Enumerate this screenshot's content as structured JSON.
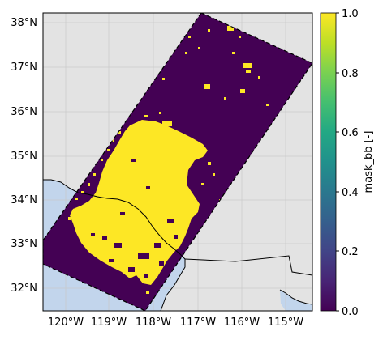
{
  "map": {
    "lat_ticks": [
      "38°N",
      "37°N",
      "36°N",
      "35°N",
      "34°N",
      "33°N",
      "32°N"
    ],
    "lon_ticks": [
      "120°W",
      "119°W",
      "118°W",
      "117°W",
      "116°W",
      "115°W"
    ],
    "colors": {
      "land": "#e3e3e3",
      "ocean": "#c2d5ec",
      "mask_zero": "#440154",
      "mask_one": "#fde725",
      "gridline": "#c8c8c8",
      "coastline": "#000000"
    }
  },
  "colorbar": {
    "label": "mask_bb [-]",
    "ticks": [
      "0.0",
      "0.2",
      "0.4",
      "0.6",
      "0.8",
      "1.0"
    ],
    "colormap": "viridis"
  }
}
